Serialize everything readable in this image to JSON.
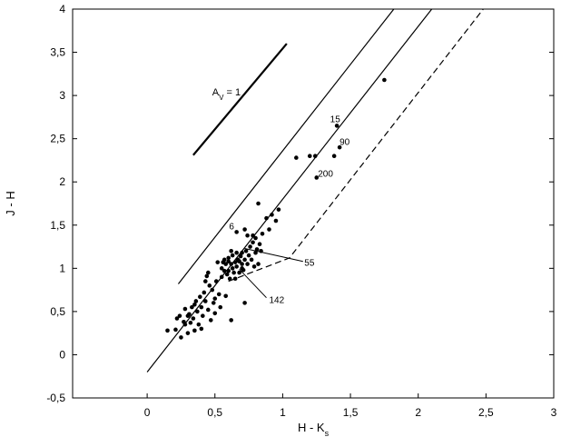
{
  "chart_data": {
    "type": "scatter",
    "title": "",
    "xlabel": "H - K",
    "xlabel_sub": "s",
    "ylabel": "J - H",
    "xlim": [
      -0.55,
      3.0
    ],
    "ylim": [
      -0.5,
      4.0
    ],
    "xticks": [
      {
        "value": 0,
        "label": "0"
      },
      {
        "value": 0.5,
        "label": "0,5"
      },
      {
        "value": 1,
        "label": "1"
      },
      {
        "value": 1.5,
        "label": "1,5"
      },
      {
        "value": 2,
        "label": "2"
      },
      {
        "value": 2.5,
        "label": "2,5"
      },
      {
        "value": 3,
        "label": "3"
      }
    ],
    "yticks": [
      {
        "value": -0.5,
        "label": "-0,5"
      },
      {
        "value": 0,
        "label": "0"
      },
      {
        "value": 0.5,
        "label": "0,5"
      },
      {
        "value": 1,
        "label": "1"
      },
      {
        "value": 1.5,
        "label": "1,5"
      },
      {
        "value": 2,
        "label": "2"
      },
      {
        "value": 2.5,
        "label": "2,5"
      },
      {
        "value": 3,
        "label": "3"
      },
      {
        "value": 3.5,
        "label": "3,5"
      },
      {
        "value": 4,
        "label": "4"
      }
    ],
    "grid": false,
    "reference_lines": [
      {
        "style": "solid",
        "points": [
          [
            0.0,
            -0.2
          ],
          [
            2.1,
            4.0
          ]
        ]
      },
      {
        "style": "solid",
        "points": [
          [
            0.23,
            0.82
          ],
          [
            1.82,
            4.0
          ]
        ]
      },
      {
        "style": "dashed",
        "points": [
          [
            0.6,
            0.85
          ],
          [
            1.05,
            1.12
          ],
          [
            2.48,
            4.0
          ]
        ]
      }
    ],
    "reddening_vector": {
      "points": [
        [
          0.34,
          2.31
        ],
        [
          1.03,
          3.6
        ]
      ],
      "label": "A",
      "label_sub": "V",
      "label_rest": " = 1",
      "label_pos": [
        0.48,
        3.0
      ]
    },
    "annotations": [
      {
        "text": "6",
        "pos": [
          0.605,
          1.45
        ]
      },
      {
        "text": "15",
        "pos": [
          1.35,
          2.69
        ]
      },
      {
        "text": "90",
        "pos": [
          1.42,
          2.43
        ]
      },
      {
        "text": "200",
        "pos": [
          1.26,
          2.06
        ]
      },
      {
        "text": "55",
        "pos": [
          1.16,
          1.03
        ],
        "leader": [
          [
            0.72,
            1.23
          ],
          [
            1.15,
            1.08
          ]
        ]
      },
      {
        "text": "142",
        "pos": [
          0.9,
          0.6
        ],
        "leader": [
          [
            0.68,
            0.99
          ],
          [
            0.88,
            0.66
          ]
        ]
      }
    ],
    "points": [
      [
        0.15,
        0.28
      ],
      [
        0.21,
        0.29
      ],
      [
        0.24,
        0.45
      ],
      [
        0.25,
        0.2
      ],
      [
        0.27,
        0.38
      ],
      [
        0.28,
        0.53
      ],
      [
        0.3,
        0.25
      ],
      [
        0.31,
        0.47
      ],
      [
        0.32,
        0.37
      ],
      [
        0.33,
        0.55
      ],
      [
        0.34,
        0.42
      ],
      [
        0.35,
        0.28
      ],
      [
        0.36,
        0.62
      ],
      [
        0.37,
        0.5
      ],
      [
        0.38,
        0.35
      ],
      [
        0.39,
        0.67
      ],
      [
        0.4,
        0.55
      ],
      [
        0.41,
        0.45
      ],
      [
        0.42,
        0.72
      ],
      [
        0.43,
        0.62
      ],
      [
        0.44,
        0.91
      ],
      [
        0.45,
        0.52
      ],
      [
        0.46,
        0.8
      ],
      [
        0.47,
        0.4
      ],
      [
        0.48,
        0.75
      ],
      [
        0.49,
        0.6
      ],
      [
        0.5,
        0.48
      ],
      [
        0.51,
        0.85
      ],
      [
        0.52,
        1.07
      ],
      [
        0.53,
        0.7
      ],
      [
        0.54,
        0.55
      ],
      [
        0.55,
        0.9
      ],
      [
        0.56,
        1.07
      ],
      [
        0.57,
        0.97
      ],
      [
        0.58,
        0.68
      ],
      [
        0.58,
        1.05
      ],
      [
        0.59,
        0.93
      ],
      [
        0.6,
        1.12
      ],
      [
        0.6,
        0.97
      ],
      [
        0.61,
        0.88
      ],
      [
        0.62,
        1.05
      ],
      [
        0.62,
        0.4
      ],
      [
        0.63,
        1.0
      ],
      [
        0.63,
        1.15
      ],
      [
        0.64,
        0.95
      ],
      [
        0.65,
        1.07
      ],
      [
        0.65,
        0.88
      ],
      [
        0.66,
        1.18
      ],
      [
        0.66,
        1.02
      ],
      [
        0.67,
        1.1
      ],
      [
        0.68,
        0.95
      ],
      [
        0.68,
        1.08
      ],
      [
        0.69,
        1.14
      ],
      [
        0.7,
        1.05
      ],
      [
        0.7,
        1.18
      ],
      [
        0.71,
        0.98
      ],
      [
        0.72,
        1.1
      ],
      [
        0.72,
        0.6
      ],
      [
        0.73,
        1.2
      ],
      [
        0.74,
        1.05
      ],
      [
        0.74,
        1.38
      ],
      [
        0.75,
        1.15
      ],
      [
        0.76,
        1.25
      ],
      [
        0.77,
        1.1
      ],
      [
        0.78,
        1.3
      ],
      [
        0.79,
        1.02
      ],
      [
        0.8,
        1.18
      ],
      [
        0.8,
        1.35
      ],
      [
        0.81,
        1.22
      ],
      [
        0.82,
        1.05
      ],
      [
        0.83,
        1.28
      ],
      [
        0.84,
        1.2
      ],
      [
        0.85,
        1.4
      ],
      [
        0.6,
        1.08
      ],
      [
        0.62,
        1.2
      ],
      [
        0.57,
        1.1
      ],
      [
        0.55,
        1.0
      ],
      [
        0.45,
        0.95
      ],
      [
        0.43,
        0.85
      ],
      [
        0.5,
        0.65
      ],
      [
        0.35,
        0.58
      ],
      [
        0.3,
        0.45
      ],
      [
        0.4,
        0.3
      ],
      [
        0.22,
        0.42
      ],
      [
        0.28,
        0.35
      ],
      [
        0.82,
        1.75
      ],
      [
        0.88,
        1.58
      ],
      [
        0.9,
        1.45
      ],
      [
        0.92,
        1.62
      ],
      [
        0.95,
        1.55
      ],
      [
        0.97,
        1.68
      ],
      [
        0.72,
        1.45
      ],
      [
        0.78,
        1.38
      ],
      [
        0.66,
        1.42
      ],
      [
        0.7,
        1.0
      ],
      [
        1.1,
        2.28
      ],
      [
        1.2,
        2.3
      ],
      [
        1.24,
        2.3
      ],
      [
        1.25,
        2.05
      ],
      [
        1.38,
        2.3
      ],
      [
        1.4,
        2.65
      ],
      [
        1.42,
        2.4
      ],
      [
        1.75,
        3.18
      ]
    ]
  }
}
